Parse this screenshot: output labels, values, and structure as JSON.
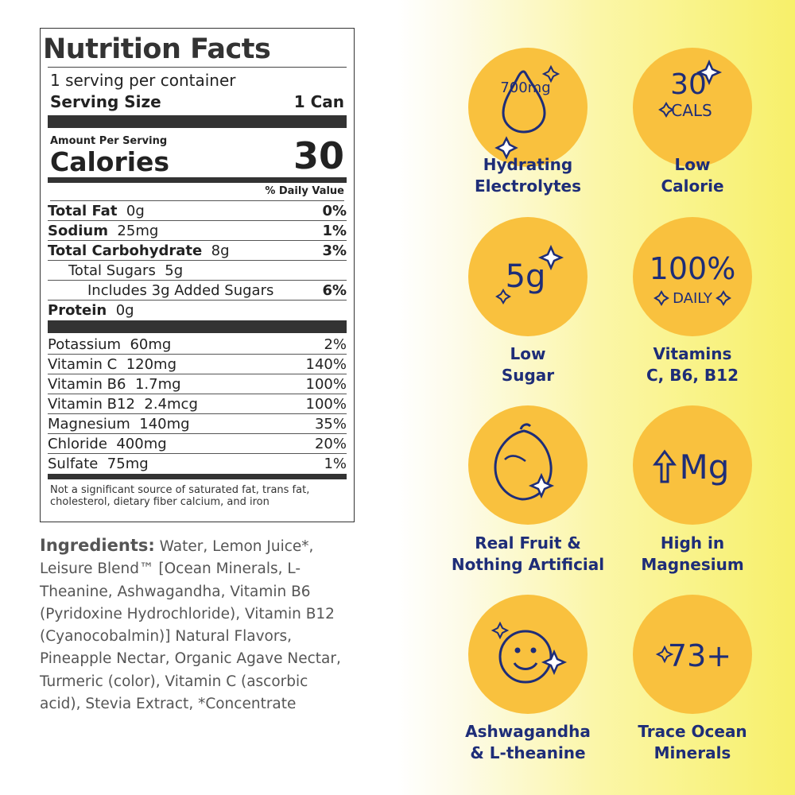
{
  "nutrition": {
    "title": "Nutrition Facts",
    "servings": "1 serving per container",
    "serving_size_label": "Serving Size",
    "serving_size_value": "1 Can",
    "amount_per_serving": "Amount Per Serving",
    "calories_label": "Calories",
    "calories_value": "30",
    "dv_header": "% Daily Value",
    "macros": [
      {
        "label": "Total Fat",
        "amount": "0g",
        "dv": "0%"
      },
      {
        "label": "Sodium",
        "amount": "25mg",
        "dv": "1%"
      },
      {
        "label": "Total Carbohydrate",
        "amount": "8g",
        "dv": "3%"
      },
      {
        "label": "Total Sugars",
        "amount": "5g",
        "dv": ""
      },
      {
        "label": "Includes 3g Added Sugars",
        "amount": "",
        "dv": "6%"
      },
      {
        "label": "Protein",
        "amount": "0g",
        "dv": ""
      }
    ],
    "micros": [
      {
        "label": "Potassium",
        "amount": "60mg",
        "dv": "2%"
      },
      {
        "label": "Vitamin C",
        "amount": "120mg",
        "dv": "140%"
      },
      {
        "label": "Vitamin B6",
        "amount": "1.7mg",
        "dv": "100%"
      },
      {
        "label": "Vitamin B12",
        "amount": "2.4mcg",
        "dv": "100%"
      },
      {
        "label": "Magnesium",
        "amount": "140mg",
        "dv": "35%"
      },
      {
        "label": "Chloride",
        "amount": "400mg",
        "dv": "20%"
      },
      {
        "label": "Sulfate",
        "amount": "75mg",
        "dv": "1%"
      }
    ],
    "footnote": "Not a significant source of saturated fat, trans fat, cholesterol, dietary fiber calcium, and iron"
  },
  "ingredients": {
    "label": "Ingredients:",
    "text": " Water, Lemon Juice*, Leisure Blend™ [Ocean Minerals, L-Theanine, Ashwagandha, Vitamin B6 (Pyridoxine Hydrochloride), Vitamin B12 (Cyanocobalmin)] Natural Flavors, Pineapple Nectar, Organic Agave Nectar, Turmeric (color), Vitamin C (ascorbic acid), Stevia Extract, *Concentrate"
  },
  "badges": [
    {
      "icon": "droplet-icon",
      "badge_text": "700mg",
      "caption_line1": "Hydrating",
      "caption_line2": "Electrolytes"
    },
    {
      "icon": "sparkle-icon",
      "badge_text": "30",
      "badge_sub": "CALS",
      "caption_line1": "Low",
      "caption_line2": "Calorie"
    },
    {
      "icon": "sparkle-icon",
      "badge_text": "5g",
      "caption_line1": "Low",
      "caption_line2": "Sugar"
    },
    {
      "icon": "sparkle-icon",
      "badge_text": "100%",
      "badge_sub": "DAILY",
      "caption_line1": "Vitamins",
      "caption_line2": "C, B6, B12"
    },
    {
      "icon": "lemon-icon",
      "caption_line1": "Real Fruit &",
      "caption_line2": "Nothing Artificial"
    },
    {
      "icon": "arrow-up-icon",
      "badge_text": "Mg",
      "caption_line1": "High in",
      "caption_line2": "Magnesium"
    },
    {
      "icon": "smiley-icon",
      "caption_line1": "Ashwagandha",
      "caption_line2": "& L-theanine"
    },
    {
      "icon": "sparkle-icon",
      "badge_text": "73+",
      "caption_line1": "Trace Ocean",
      "caption_line2": "Minerals"
    }
  ],
  "colors": {
    "badge": "#f9c13e",
    "icon_stroke": "#1e2d78",
    "caption": "#1e2d78"
  }
}
